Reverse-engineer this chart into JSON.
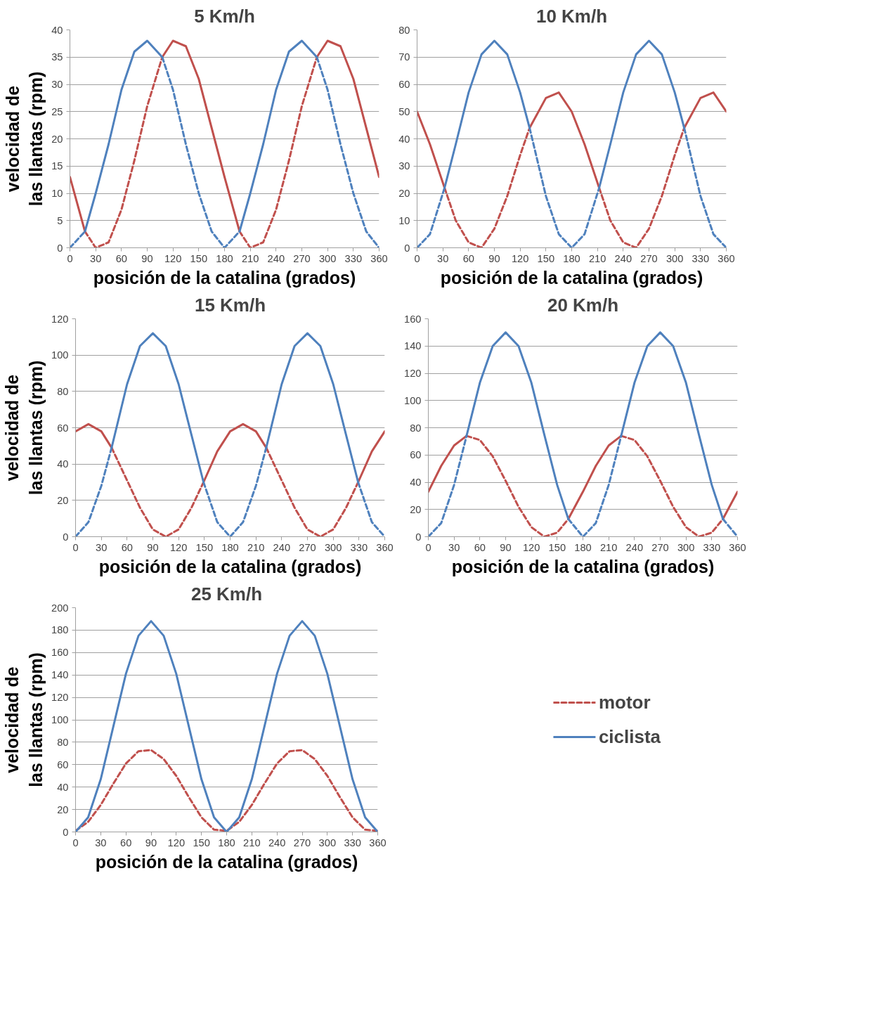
{
  "chart_data": [
    {
      "type": "line",
      "title": "5 Km/h",
      "xlabel": "posición de la catalina (grados)",
      "ylabel": "velocidad de\nlas llantas (rpm)",
      "grid": "y",
      "line_style": "solid",
      "x": [
        0,
        17.5,
        30,
        45,
        60,
        75,
        90,
        107.5,
        120,
        135,
        150,
        165,
        180,
        197.5,
        210,
        225,
        240,
        255,
        270,
        287.5,
        300,
        315,
        330,
        345,
        360
      ],
      "xlim": [
        0,
        360
      ],
      "xticks": [
        0,
        30,
        60,
        90,
        120,
        150,
        180,
        210,
        240,
        270,
        300,
        330,
        360
      ],
      "ylim": [
        0,
        40
      ],
      "yticks": [
        0,
        5,
        10,
        15,
        20,
        25,
        30,
        35,
        40
      ],
      "series": [
        {
          "color": "#c0504d",
          "values": [
            13,
            3,
            null,
            null,
            null,
            null,
            null,
            35,
            38,
            37,
            31,
            22,
            13,
            3,
            null,
            null,
            null,
            null,
            null,
            35,
            38,
            37,
            31,
            22,
            13
          ]
        },
        {
          "color": "#c0504d",
          "line_style": "dashed",
          "values": [
            null,
            3,
            0,
            1,
            7,
            16,
            26,
            35,
            null,
            null,
            null,
            null,
            null,
            3,
            0,
            1,
            7,
            16,
            26,
            35,
            null,
            null,
            null,
            null,
            null
          ]
        },
        {
          "color": "#4f81bd",
          "values": [
            null,
            3,
            10,
            19,
            29,
            36,
            38,
            35,
            null,
            null,
            null,
            null,
            null,
            3,
            10,
            19,
            29,
            36,
            38,
            35,
            null,
            null,
            null,
            null,
            null
          ]
        },
        {
          "color": "#4f81bd",
          "line_style": "dashed",
          "values": [
            0,
            3,
            null,
            null,
            null,
            null,
            null,
            35,
            29,
            19,
            10,
            3,
            0,
            3,
            null,
            null,
            null,
            null,
            null,
            35,
            29,
            19,
            10,
            3,
            0
          ]
        }
      ]
    },
    {
      "type": "line",
      "title": "10 Km/h",
      "xlabel": "posición de la catalina (grados)",
      "grid": "y",
      "line_style": "solid",
      "x": [
        0,
        15,
        32,
        45,
        60,
        75,
        90,
        105,
        120,
        131,
        150,
        165,
        180,
        195,
        212,
        225,
        240,
        255,
        270,
        285,
        300,
        311,
        330,
        345,
        360
      ],
      "xlim": [
        0,
        360
      ],
      "xticks": [
        0,
        30,
        60,
        90,
        120,
        150,
        180,
        210,
        240,
        270,
        300,
        330,
        360
      ],
      "ylim": [
        0,
        80
      ],
      "yticks": [
        0,
        10,
        20,
        30,
        40,
        50,
        60,
        70,
        80
      ],
      "series": [
        {
          "color": "#c0504d",
          "values": [
            50,
            38,
            22,
            null,
            null,
            null,
            null,
            null,
            null,
            44,
            55,
            57,
            50,
            38,
            22,
            null,
            null,
            null,
            null,
            null,
            null,
            44,
            55,
            57,
            50
          ]
        },
        {
          "color": "#c0504d",
          "line_style": "dashed",
          "values": [
            null,
            null,
            22,
            10,
            2,
            0,
            7,
            19,
            34,
            44,
            null,
            null,
            null,
            null,
            22,
            10,
            2,
            0,
            7,
            19,
            34,
            44,
            null,
            null,
            null
          ]
        },
        {
          "color": "#4f81bd",
          "values": [
            null,
            null,
            22,
            38,
            57,
            71,
            76,
            71,
            57,
            44,
            null,
            null,
            null,
            null,
            22,
            38,
            57,
            71,
            76,
            71,
            57,
            44,
            null,
            null,
            null
          ]
        },
        {
          "color": "#4f81bd",
          "line_style": "dashed",
          "values": [
            0,
            5,
            22,
            null,
            null,
            null,
            null,
            null,
            null,
            44,
            19,
            5,
            0,
            5,
            22,
            null,
            null,
            null,
            null,
            null,
            null,
            44,
            19,
            5,
            0
          ]
        }
      ]
    },
    {
      "type": "line",
      "title": "15 Km/h",
      "xlabel": "posición de la catalina (grados)",
      "ylabel": "velocidad de\nlas llantas (rpm)",
      "grid": "y",
      "line_style": "solid",
      "x": [
        0,
        15,
        30,
        42,
        60,
        75,
        90,
        105,
        120,
        135,
        149,
        165,
        180,
        195,
        210,
        222,
        240,
        255,
        270,
        285,
        300,
        315,
        329,
        345,
        360
      ],
      "xlim": [
        0,
        360
      ],
      "xticks": [
        0,
        30,
        60,
        90,
        120,
        150,
        180,
        210,
        240,
        270,
        300,
        330,
        360
      ],
      "ylim": [
        0,
        120
      ],
      "yticks": [
        0,
        20,
        40,
        60,
        80,
        100,
        120
      ],
      "series": [
        {
          "color": "#c0504d",
          "values": [
            58,
            62,
            58,
            49,
            null,
            null,
            null,
            null,
            null,
            null,
            30,
            47,
            58,
            62,
            58,
            49,
            null,
            null,
            null,
            null,
            null,
            null,
            30,
            47,
            58
          ]
        },
        {
          "color": "#c0504d",
          "line_style": "dashed",
          "values": [
            null,
            null,
            null,
            49,
            31,
            16,
            4,
            0,
            4,
            16,
            30,
            null,
            null,
            null,
            null,
            49,
            31,
            16,
            4,
            0,
            4,
            16,
            30,
            null,
            null
          ]
        },
        {
          "color": "#4f81bd",
          "values": [
            null,
            null,
            null,
            49,
            84,
            105,
            112,
            105,
            84,
            56,
            30,
            null,
            null,
            null,
            null,
            49,
            84,
            105,
            112,
            105,
            84,
            56,
            30,
            null,
            null
          ]
        },
        {
          "color": "#4f81bd",
          "line_style": "dashed",
          "values": [
            0,
            8,
            28,
            49,
            null,
            null,
            null,
            null,
            null,
            null,
            30,
            8,
            0,
            8,
            28,
            49,
            null,
            null,
            null,
            null,
            null,
            null,
            30,
            8,
            0
          ]
        }
      ]
    },
    {
      "type": "line",
      "title": "20 Km/h",
      "xlabel": "posición de la catalina (grados)",
      "grid": "y",
      "line_style": "solid",
      "x": [
        0,
        15,
        30,
        44.5,
        60,
        75,
        90,
        105,
        120,
        135,
        150,
        163,
        180,
        195,
        210,
        224.5,
        240,
        255,
        270,
        285,
        300,
        315,
        330,
        343,
        360
      ],
      "xlim": [
        0,
        360
      ],
      "xticks": [
        0,
        30,
        60,
        90,
        120,
        150,
        180,
        210,
        240,
        270,
        300,
        330,
        360
      ],
      "ylim": [
        0,
        160
      ],
      "yticks": [
        0,
        20,
        40,
        60,
        80,
        100,
        120,
        140,
        160
      ],
      "series": [
        {
          "color": "#c0504d",
          "values": [
            33,
            52,
            67,
            74,
            null,
            null,
            null,
            null,
            null,
            null,
            null,
            13,
            33,
            52,
            67,
            74,
            null,
            null,
            null,
            null,
            null,
            null,
            null,
            13,
            33
          ]
        },
        {
          "color": "#c0504d",
          "line_style": "dashed",
          "values": [
            null,
            null,
            null,
            74,
            71,
            59,
            41,
            22,
            7,
            0,
            3,
            13,
            null,
            null,
            null,
            74,
            71,
            59,
            41,
            22,
            7,
            0,
            3,
            13,
            null
          ]
        },
        {
          "color": "#4f81bd",
          "values": [
            null,
            null,
            null,
            74,
            113,
            140,
            150,
            140,
            113,
            75,
            38,
            13,
            null,
            null,
            null,
            74,
            113,
            140,
            150,
            140,
            113,
            75,
            38,
            13,
            null
          ]
        },
        {
          "color": "#4f81bd",
          "line_style": "dashed",
          "values": [
            0,
            10,
            38,
            74,
            null,
            null,
            null,
            null,
            null,
            null,
            null,
            13,
            0,
            10,
            38,
            74,
            null,
            null,
            null,
            null,
            null,
            null,
            null,
            13,
            0
          ]
        }
      ]
    },
    {
      "type": "line",
      "title": "25 Km/h",
      "xlabel": "posición de la catalina (grados)",
      "ylabel": "velocidad de\nlas llantas (rpm)",
      "grid": "y",
      "line_style": "solid",
      "legend": "right",
      "x": [
        0,
        15,
        30,
        45,
        60,
        75,
        90,
        105,
        120,
        135,
        150,
        165,
        180,
        195,
        210,
        225,
        240,
        255,
        270,
        285,
        300,
        315,
        330,
        345,
        360
      ],
      "xlim": [
        0,
        360
      ],
      "xticks": [
        0,
        30,
        60,
        90,
        120,
        150,
        180,
        210,
        240,
        270,
        300,
        330,
        360
      ],
      "ylim": [
        0,
        200
      ],
      "yticks": [
        0,
        20,
        40,
        60,
        80,
        100,
        120,
        140,
        160,
        180,
        200
      ],
      "series": [
        {
          "name": "motor",
          "color": "#c0504d",
          "line_style": "dashed",
          "values": [
            1,
            9,
            24,
            43,
            61,
            72,
            73,
            65,
            50,
            31,
            13,
            2,
            1,
            9,
            24,
            43,
            61,
            72,
            73,
            65,
            50,
            31,
            13,
            2,
            1
          ]
        },
        {
          "name": "ciclista",
          "color": "#4f81bd",
          "values": [
            0,
            13,
            47,
            94,
            141,
            175,
            188,
            175,
            141,
            94,
            47,
            13,
            0,
            13,
            47,
            94,
            141,
            175,
            188,
            175,
            141,
            94,
            47,
            13,
            0
          ]
        }
      ]
    }
  ]
}
